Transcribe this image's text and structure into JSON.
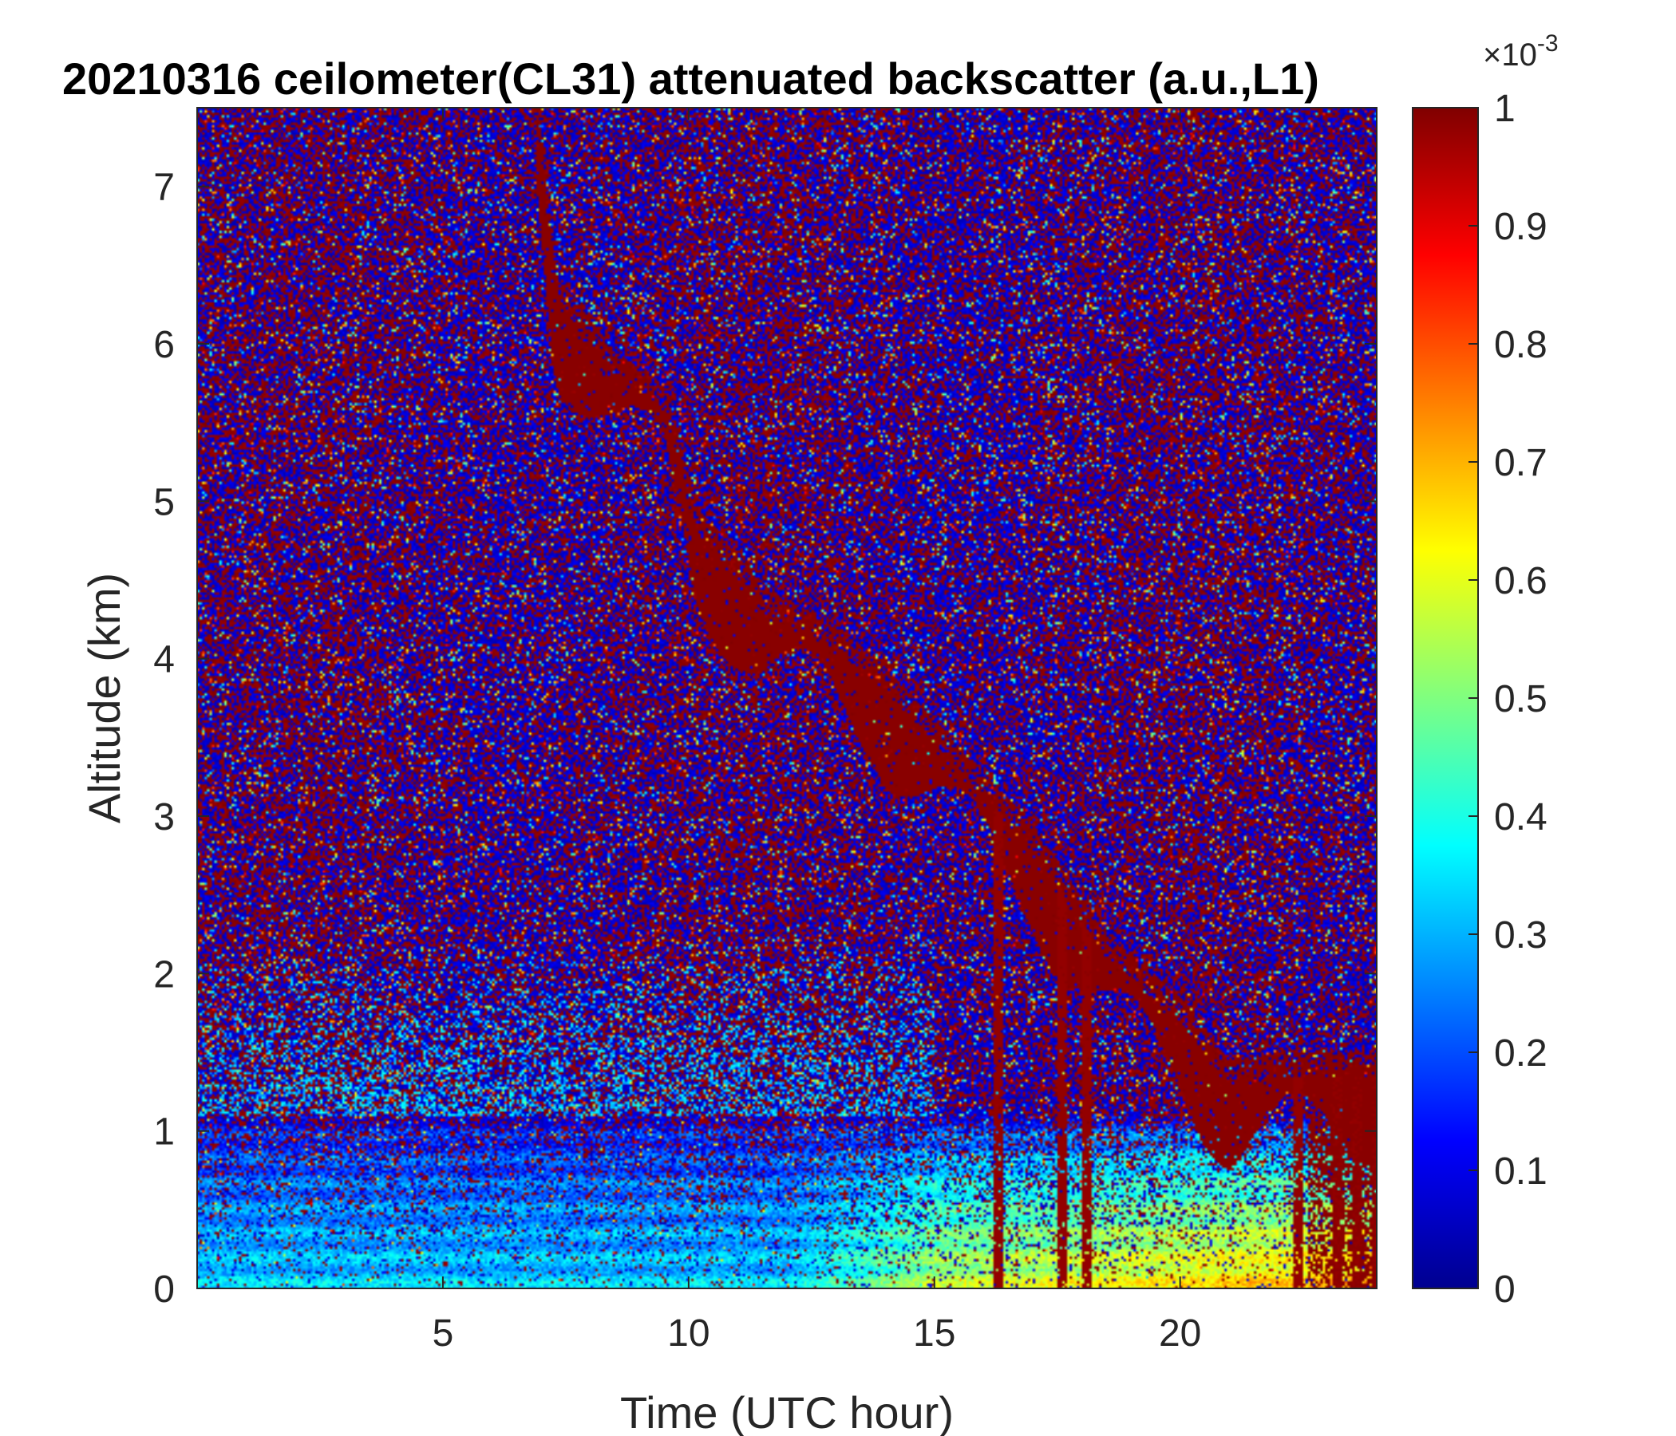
{
  "chart_data": {
    "type": "heatmap",
    "title": "20210316 ceilometer(CL31) attenuated backscatter (a.u.,L1)",
    "xlabel": "Time (UTC hour)",
    "ylabel": "Altitude (km)",
    "xlim": [
      0,
      24
    ],
    "ylim": [
      0,
      7.5
    ],
    "xticks": [
      5,
      10,
      15,
      20
    ],
    "yticks": [
      0,
      1,
      2,
      3,
      4,
      5,
      6,
      7
    ],
    "colorbar": {
      "colormap": "jet",
      "clim": [
        0,
        1
      ],
      "ticks": [
        0,
        0.1,
        0.2,
        0.3,
        0.4,
        0.5,
        0.6,
        0.7,
        0.8,
        0.9,
        1
      ],
      "exponent_base": "×10",
      "exponent_power": "-3"
    },
    "grid": false,
    "features": {
      "cloud_layer_path": [
        {
          "t": 6.9,
          "z": 7.5
        },
        {
          "t": 7.3,
          "z": 6.3
        },
        {
          "t": 8.5,
          "z": 5.8
        },
        {
          "t": 9.5,
          "z": 5.6
        },
        {
          "t": 10.2,
          "z": 4.8
        },
        {
          "t": 11.5,
          "z": 4.3
        },
        {
          "t": 12.8,
          "z": 4.1
        },
        {
          "t": 14.0,
          "z": 3.8
        },
        {
          "t": 15.5,
          "z": 3.3
        },
        {
          "t": 17.0,
          "z": 2.8
        },
        {
          "t": 18.5,
          "z": 2.1
        },
        {
          "t": 20.0,
          "z": 1.7
        },
        {
          "t": 21.0,
          "z": 1.3
        },
        {
          "t": 22.5,
          "z": 1.35
        },
        {
          "t": 24.0,
          "z": 1.35
        }
      ],
      "precipitation_columns_hours": [
        16.3,
        17.6,
        18.1,
        22.4,
        23.2,
        23.6,
        24.0
      ],
      "near_surface_layer_top_km": 1.1
    }
  }
}
